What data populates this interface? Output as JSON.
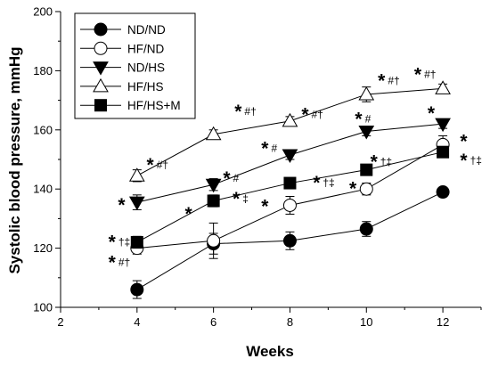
{
  "chart_data": {
    "type": "line",
    "title": "",
    "xlabel": "Weeks",
    "ylabel": "Systolic blood pressure, mmHg",
    "xlim": [
      2,
      13
    ],
    "ylim": [
      100,
      200
    ],
    "xticks": [
      "2",
      "4",
      "6",
      "8",
      "10",
      "12"
    ],
    "yticks": [
      "100",
      "120",
      "140",
      "160",
      "180",
      "200"
    ],
    "x": [
      4,
      6,
      8,
      10,
      12
    ],
    "legend_position": "top-left",
    "series": [
      {
        "name": "ND/ND",
        "marker": "filled-circle",
        "values": [
          106,
          121.5,
          122.5,
          126.5,
          139
        ],
        "errors": [
          3,
          3.5,
          3,
          2.5,
          1.5
        ]
      },
      {
        "name": "HF/ND",
        "marker": "open-circle",
        "values": [
          120,
          122.5,
          134.5,
          140,
          155
        ],
        "errors": [
          2,
          6,
          3,
          2,
          3
        ]
      },
      {
        "name": "ND/HS",
        "marker": "filled-triangle-down",
        "values": [
          135.5,
          141.5,
          151.5,
          159.5,
          162
        ],
        "errors": [
          2.5,
          2,
          1.5,
          1.5,
          1.5
        ]
      },
      {
        "name": "HF/HS",
        "marker": "open-triangle-up",
        "values": [
          144.5,
          158.5,
          163,
          172,
          174
        ],
        "errors": [
          2,
          1.5,
          1.5,
          2.5,
          1.5
        ]
      },
      {
        "name": "HF/HS+M",
        "marker": "filled-square",
        "values": [
          122,
          136,
          142,
          146.5,
          152.5
        ],
        "errors": [
          2,
          2,
          1.5,
          1.5,
          1.5
        ]
      }
    ],
    "annotations": [
      {
        "x": 3.25,
        "y": 122.5,
        "star": "*",
        "symbols": "†‡"
      },
      {
        "x": 3.25,
        "y": 115.5,
        "star": "*",
        "symbols": "#†"
      },
      {
        "x": 3.5,
        "y": 135,
        "star": "*",
        "symbols": ""
      },
      {
        "x": 4.25,
        "y": 148.5,
        "star": "*",
        "symbols": "#†"
      },
      {
        "x": 5.25,
        "y": 132,
        "star": "*",
        "symbols": ""
      },
      {
        "x": 6.25,
        "y": 144,
        "star": "*",
        "symbols": "#"
      },
      {
        "x": 6.5,
        "y": 137,
        "star": "*",
        "symbols": "‡"
      },
      {
        "x": 7.25,
        "y": 154,
        "star": "*",
        "symbols": "#"
      },
      {
        "x": 7.25,
        "y": 134.5,
        "star": "*",
        "symbols": ""
      },
      {
        "x": 8.3,
        "y": 165.5,
        "star": "*",
        "symbols": "#†"
      },
      {
        "x": 8.6,
        "y": 142.5,
        "star": "*",
        "symbols": "†‡"
      },
      {
        "x": 9.7,
        "y": 164,
        "star": "*",
        "symbols": "#"
      },
      {
        "x": 9.55,
        "y": 140.5,
        "star": "*",
        "symbols": ""
      },
      {
        "x": 10.1,
        "y": 149.5,
        "star": "*",
        "symbols": "†‡"
      },
      {
        "x": 6.55,
        "y": 166.5,
        "star": "*",
        "symbols": "#†"
      },
      {
        "x": 10.3,
        "y": 177,
        "star": "*",
        "symbols": "#†"
      },
      {
        "x": 11.25,
        "y": 179,
        "star": "*",
        "symbols": "#†"
      },
      {
        "x": 11.6,
        "y": 166,
        "star": "*",
        "symbols": ""
      },
      {
        "x": 12.45,
        "y": 156.5,
        "star": "*",
        "symbols": ""
      },
      {
        "x": 12.45,
        "y": 150,
        "star": "*",
        "symbols": "†‡"
      }
    ]
  }
}
